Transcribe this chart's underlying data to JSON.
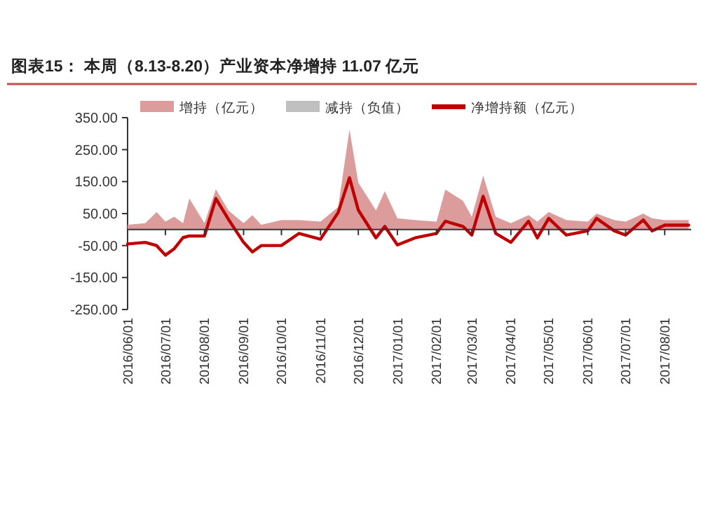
{
  "chart_data": {
    "type": "area",
    "title": "图表15： 本周（8.13-8.20）产业资本净增持 11.07 亿元",
    "x": [
      "2016-06-01",
      "2016-06-15",
      "2016-06-24",
      "2016-07-01",
      "2016-07-08",
      "2016-07-15",
      "2016-07-20",
      "2016-08-01",
      "2016-08-10",
      "2016-08-20",
      "2016-09-01",
      "2016-09-08",
      "2016-09-15",
      "2016-10-01",
      "2016-10-15",
      "2016-11-01",
      "2016-11-15",
      "2016-11-24",
      "2016-12-01",
      "2016-12-15",
      "2016-12-22",
      "2017-01-01",
      "2017-01-15",
      "2017-02-01",
      "2017-02-08",
      "2017-02-22",
      "2017-03-01",
      "2017-03-10",
      "2017-03-20",
      "2017-04-01",
      "2017-04-15",
      "2017-04-22",
      "2017-05-01",
      "2017-05-15",
      "2017-06-01",
      "2017-06-08",
      "2017-06-22",
      "2017-07-01",
      "2017-07-15",
      "2017-07-22",
      "2017-08-01",
      "2017-08-20"
    ],
    "series": [
      {
        "name": "增持（亿元）",
        "color": "#dc9c9c",
        "values": [
          15,
          20,
          55,
          25,
          40,
          20,
          97,
          20,
          126,
          60,
          20,
          45,
          15,
          30,
          30,
          25,
          70,
          313,
          147,
          60,
          120,
          35,
          30,
          25,
          125,
          90,
          40,
          169,
          40,
          20,
          45,
          25,
          55,
          30,
          25,
          50,
          30,
          25,
          50,
          35,
          30,
          30
        ]
      },
      {
        "name": "减持（负值）",
        "color": "#c0c0c0",
        "values": [
          null,
          null,
          null,
          null,
          null,
          null,
          null,
          null,
          null,
          null,
          null,
          null,
          null,
          null,
          null,
          null,
          null,
          null,
          null,
          null,
          null,
          null,
          null,
          null,
          null,
          null,
          null,
          null,
          null,
          null,
          null,
          null,
          null,
          null,
          null,
          null,
          null,
          null,
          null,
          null,
          null,
          null
        ]
      },
      {
        "name": "净增持额（亿元）",
        "type": "line",
        "color": "#c00000",
        "values": [
          -45,
          -40,
          -50,
          -80,
          -60,
          -25,
          -20,
          -20,
          97,
          32,
          -40,
          -70,
          -50,
          -50,
          -12,
          -30,
          53,
          162,
          61,
          -26,
          10,
          -48,
          -26,
          -12,
          26,
          10,
          -17,
          104,
          -12,
          -40,
          26,
          -26,
          35,
          -17,
          -4,
          35,
          -4,
          -17,
          30,
          -4,
          14,
          14
        ]
      }
    ],
    "xlim": [
      "2016-06-01",
      "2017-08-22"
    ],
    "xticks": [
      {
        "value": "2016-06-01",
        "label": "2016/06/01"
      },
      {
        "value": "2016-07-01",
        "label": "2016/07/01"
      },
      {
        "value": "2016-08-01",
        "label": "2016/08/01"
      },
      {
        "value": "2016-09-01",
        "label": "2016/09/01"
      },
      {
        "value": "2016-10-01",
        "label": "2016/10/01"
      },
      {
        "value": "2016-11-01",
        "label": "2016/11/01"
      },
      {
        "value": "2016-12-01",
        "label": "2016/12/01"
      },
      {
        "value": "2017-01-01",
        "label": "2017/01/01"
      },
      {
        "value": "2017-02-01",
        "label": "2017/02/01"
      },
      {
        "value": "2017-03-01",
        "label": "2017/03/01"
      },
      {
        "value": "2017-04-01",
        "label": "2017/04/01"
      },
      {
        "value": "2017-05-01",
        "label": "2017/05/01"
      },
      {
        "value": "2017-06-01",
        "label": "2017/06/01"
      },
      {
        "value": "2017-07-01",
        "label": "2017/07/01"
      },
      {
        "value": "2017-08-01",
        "label": "2017/08/01"
      }
    ],
    "ylim": [
      -250,
      350
    ],
    "yticks": [
      {
        "value": -250,
        "label": "-250.00"
      },
      {
        "value": -150,
        "label": "-150.00"
      },
      {
        "value": -50,
        "label": "-50.00"
      },
      {
        "value": 50,
        "label": "50.00"
      },
      {
        "value": 150,
        "label": "150.00"
      },
      {
        "value": 250,
        "label": "250.00"
      },
      {
        "value": 350,
        "label": "350.00"
      }
    ],
    "legend": "top"
  }
}
